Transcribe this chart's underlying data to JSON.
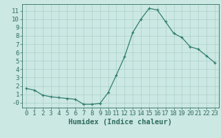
{
  "x": [
    0,
    1,
    2,
    3,
    4,
    5,
    6,
    7,
    8,
    9,
    10,
    11,
    12,
    13,
    14,
    15,
    16,
    17,
    18,
    19,
    20,
    21,
    22,
    23
  ],
  "y": [
    1.7,
    1.5,
    0.9,
    0.7,
    0.6,
    0.5,
    0.4,
    -0.2,
    -0.2,
    -0.1,
    1.2,
    3.3,
    5.5,
    8.4,
    10.0,
    11.3,
    11.1,
    9.7,
    8.3,
    7.8,
    6.7,
    6.4,
    5.6,
    4.8
  ],
  "line_color": "#2e7d6e",
  "bg_color": "#cce8e3",
  "grid_color": "#aacfc9",
  "xlabel": "Humidex (Indice chaleur)",
  "xlim": [
    -0.5,
    23.5
  ],
  "ylim": [
    -0.6,
    11.8
  ],
  "yticks": [
    0,
    1,
    2,
    3,
    4,
    5,
    6,
    7,
    8,
    9,
    10,
    11
  ],
  "ytick_labels": [
    "-0",
    "1",
    "2",
    "3",
    "4",
    "5",
    "6",
    "7",
    "8",
    "9",
    "10",
    "11"
  ],
  "xtick_labels": [
    "0",
    "1",
    "2",
    "3",
    "4",
    "5",
    "6",
    "7",
    "8",
    "9",
    "10",
    "11",
    "12",
    "13",
    "14",
    "15",
    "16",
    "17",
    "18",
    "19",
    "20",
    "21",
    "22",
    "23"
  ],
  "tick_color": "#2e6b5e",
  "label_fontsize": 6.5,
  "xlabel_fontsize": 7.5,
  "marker_size": 3,
  "linewidth": 0.9
}
